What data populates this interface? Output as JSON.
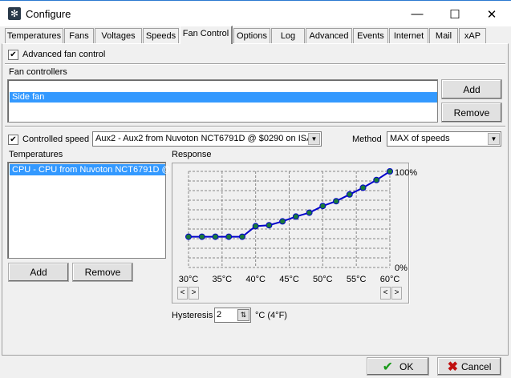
{
  "window": {
    "title": "Configure",
    "minimize": "—",
    "maximize": "☐",
    "close": "✕"
  },
  "tabs": [
    {
      "label": "Temperatures"
    },
    {
      "label": "Fans"
    },
    {
      "label": "Voltages"
    },
    {
      "label": "Speeds"
    },
    {
      "label": "Fan Control",
      "selected": true
    },
    {
      "label": "Options"
    },
    {
      "label": "Log"
    },
    {
      "label": "Advanced"
    },
    {
      "label": "Events"
    },
    {
      "label": "Internet"
    },
    {
      "label": "Mail"
    },
    {
      "label": "xAP"
    }
  ],
  "advanced": {
    "label": "Advanced fan control",
    "checked": true
  },
  "fan_controllers": {
    "label": "Fan controllers",
    "items": [
      "Side fan"
    ],
    "selected": "Side fan",
    "add": "Add",
    "remove": "Remove"
  },
  "controlled_speed": {
    "label": "Controlled speed",
    "checked": true,
    "value": "Aux2 - Aux2 from Nuvoton NCT6791D @ $0290 on ISA"
  },
  "method": {
    "label": "Method",
    "value": "MAX of speeds"
  },
  "temperatures": {
    "label": "Temperatures",
    "items": [
      "CPU - CPU from Nuvoton NCT6791D @"
    ],
    "add": "Add",
    "remove": "Remove"
  },
  "response": {
    "label": "Response"
  },
  "chart_data": {
    "type": "line",
    "x_unit": "°C",
    "y_unit": "%",
    "xlim": [
      30,
      60
    ],
    "ylim": [
      0,
      100
    ],
    "grid": true,
    "x_ticks": [
      "30°C",
      "35°C",
      "40°C",
      "45°C",
      "50°C",
      "55°C",
      "60°C"
    ],
    "y_ticks": [
      "100%",
      "0%"
    ],
    "x": [
      30,
      32,
      34,
      36,
      38,
      40,
      42,
      44,
      46,
      48,
      50,
      52,
      54,
      56,
      58,
      60
    ],
    "y": [
      32,
      32,
      32,
      32,
      32,
      43,
      44,
      48,
      53,
      57,
      64,
      69,
      76,
      83,
      91,
      100
    ],
    "line_color": "#0000cc",
    "point_color": "#1a7a3a"
  },
  "hysteresis": {
    "label": "Hysteresis",
    "value": "2",
    "unit": "°C (4°F)"
  },
  "footer": {
    "ok": "OK",
    "cancel": "Cancel"
  }
}
